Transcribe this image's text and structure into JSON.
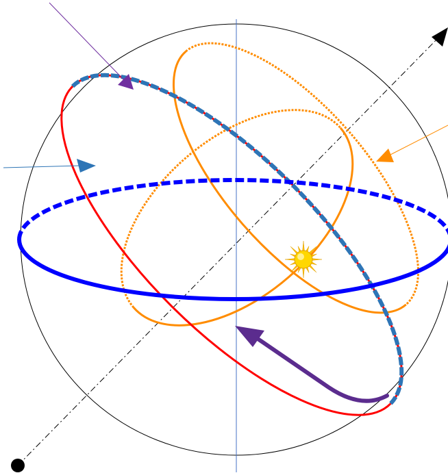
{
  "diagram": {
    "colors": {
      "sphere": "#000000",
      "vertical_axis": "#4472c4",
      "polar_axis": "#000000",
      "equator": "#0000ff",
      "ecliptic_near": "#ff0000",
      "ecliptic_far_dash": "#2e75b6",
      "orbit": "#ff8c00",
      "sun_arc": "#5b2c8e",
      "pointer_top": "#7030a0",
      "pointer_left": "#2e75b6",
      "pointer_right": "#ff8c00",
      "sun_core": "#ffd700"
    },
    "icons": [
      "sun-icon",
      "pole-dot-icon",
      "axis-arrowhead-icon"
    ]
  }
}
